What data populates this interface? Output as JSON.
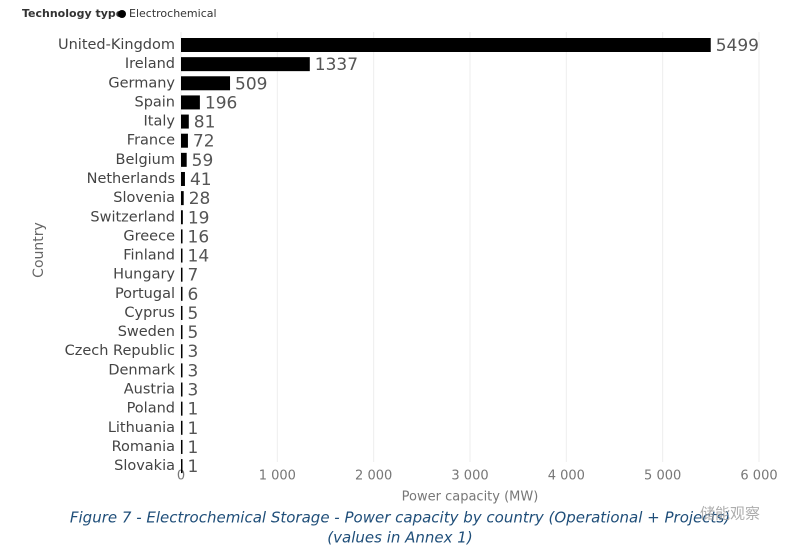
{
  "chart_data": {
    "type": "bar",
    "orientation": "horizontal",
    "legend_title": "Technology type",
    "x_label": "Power capacity (MW)",
    "y_label": "Country",
    "categories": [
      "United-Kingdom",
      "Ireland",
      "Germany",
      "Spain",
      "Italy",
      "France",
      "Belgium",
      "Netherlands",
      "Slovenia",
      "Switzerland",
      "Greece",
      "Finland",
      "Hungary",
      "Portugal",
      "Cyprus",
      "Sweden",
      "Czech Republic",
      "Denmark",
      "Austria",
      "Poland",
      "Lithuania",
      "Romania",
      "Slovakia"
    ],
    "series": [
      {
        "name": "Electrochemical",
        "color": "#000000",
        "values": [
          5499,
          1337,
          509,
          196,
          81,
          72,
          59,
          41,
          28,
          19,
          16,
          14,
          7,
          6,
          5,
          5,
          3,
          3,
          3,
          1,
          1,
          1,
          1
        ]
      }
    ],
    "xlim": [
      0,
      6000
    ],
    "xticks": [
      0,
      {
        "value": 1000,
        "label": "1 000"
      },
      {
        "value": 2000,
        "label": "2 000"
      },
      {
        "value": 3000,
        "label": "3 000"
      },
      {
        "value": 4000,
        "label": "4 000"
      },
      {
        "value": 5000,
        "label": "5 000"
      },
      {
        "value": 6000,
        "label": "6 000"
      }
    ],
    "grid": true,
    "caption": [
      "Figure 7 - Electrochemical Storage - Power capacity by country (Operational + Projects)",
      "(values in Annex 1)"
    ],
    "watermark": "储能观察"
  }
}
